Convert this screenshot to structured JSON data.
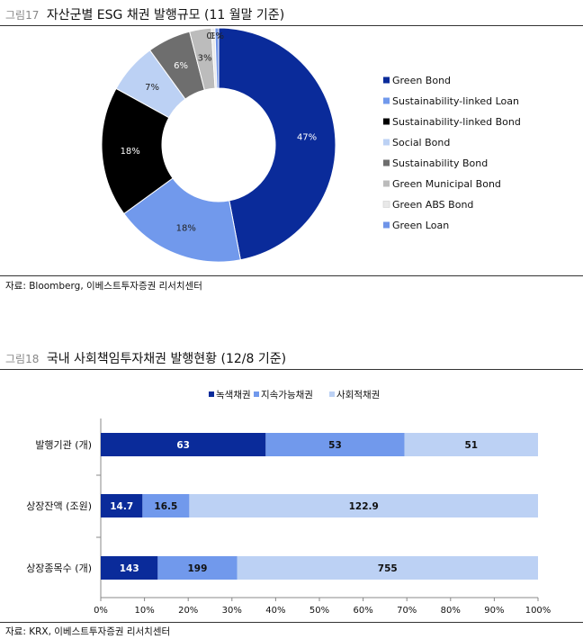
{
  "figure17": {
    "number": "그림17",
    "title": "자산군별 ESG 채권 발행규모 (11 월말 기준)",
    "source": "자료: Bloomberg, 이베스트투자증권 리서치센터"
  },
  "figure18": {
    "number": "그림18",
    "title": "국내 사회책임투자채권 발행현황 (12/8 기준)",
    "source": "자료: KRX, 이베스트투자증권 리서치센터"
  },
  "chart_data": [
    {
      "type": "pie",
      "donut": true,
      "title": "자산군별 ESG 채권 발행규모 (11 월말 기준)",
      "legend_position": "right",
      "slices": [
        {
          "name": "Green Bond",
          "value": 47,
          "label": "47%",
          "color": "#0a2b9a"
        },
        {
          "name": "Sustainability-linked Loan",
          "value": 18,
          "label": "18%",
          "color": "#7199ec"
        },
        {
          "name": "Sustainability-linked Bond",
          "value": 18,
          "label": "18%",
          "color": "#000000"
        },
        {
          "name": "Social Bond",
          "value": 7,
          "label": "7%",
          "color": "#bcd1f4"
        },
        {
          "name": "Sustainability Bond",
          "value": 6,
          "label": "6%",
          "color": "#6e6e6e"
        },
        {
          "name": "Green Municipal Bond",
          "value": 3,
          "label": "3%",
          "color": "#bcbcbc"
        },
        {
          "name": "Green ABS Bond",
          "value": 0.5,
          "label": "0%",
          "color": "#e9e9e9"
        },
        {
          "name": "Green Loan",
          "value": 0.5,
          "label": "1%",
          "color": "#6f94e8"
        }
      ]
    },
    {
      "type": "bar",
      "orientation": "horizontal",
      "stacked": "percent",
      "title": "국내 사회책임투자채권 발행현황 (12/8 기준)",
      "legend_position": "top",
      "categories": [
        "발행기관 (개)",
        "상장잔액 (조원)",
        "상장종목수 (개)"
      ],
      "series": [
        {
          "name": "녹색채권",
          "color": "#0a2b9a",
          "values": [
            63,
            14.7,
            143
          ],
          "labels": [
            "63",
            "14.7",
            "143"
          ]
        },
        {
          "name": "지속가능채권",
          "color": "#7199ec",
          "values": [
            53,
            16.5,
            199
          ],
          "labels": [
            "53",
            "16.5",
            "199"
          ]
        },
        {
          "name": "사회적채권",
          "color": "#bcd1f4",
          "values": [
            51,
            122.9,
            755
          ],
          "labels": [
            "51",
            "122.9",
            "755"
          ]
        }
      ],
      "xlim": [
        0,
        100
      ],
      "x_ticks": [
        "0%",
        "10%",
        "20%",
        "30%",
        "40%",
        "50%",
        "60%",
        "70%",
        "80%",
        "90%",
        "100%"
      ],
      "grid": false
    }
  ]
}
